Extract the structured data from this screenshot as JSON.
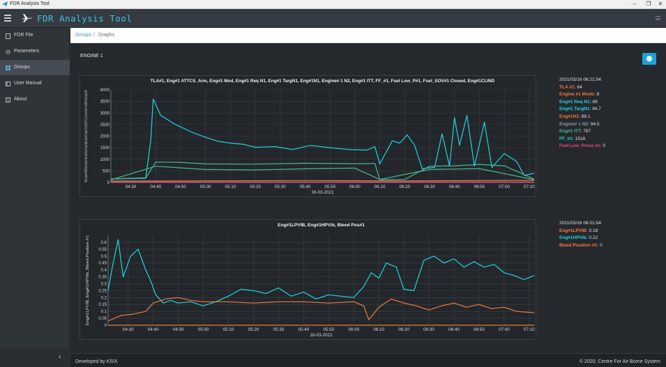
{
  "window": {
    "title": "FDR Analysis Tool"
  },
  "appbar": {
    "title": "FDR Analysis Tool"
  },
  "sidebar": {
    "items": [
      {
        "label": "FDR File",
        "icon": "file-icon"
      },
      {
        "label": "Parameters",
        "icon": "gear-icon"
      },
      {
        "label": "Groups",
        "icon": "grid-icon"
      },
      {
        "label": "User Manual",
        "icon": "book-icon"
      },
      {
        "label": "About",
        "icon": "info-icon"
      }
    ],
    "active": "Groups"
  },
  "breadcrumb": {
    "parent": "Groups",
    "separator": "/",
    "current": "Graphs"
  },
  "page": {
    "section_title": "ENGINE 1"
  },
  "footer": {
    "left": "Developed by KSIX",
    "right": "© 2020. Centre For Air Borne System"
  },
  "colors": {
    "cyan": "#1fd6df",
    "green": "#49b88f",
    "orange": "#f07a3e",
    "pink": "#e54a8a",
    "accent": "#1fa0d8"
  },
  "charts": [
    {
      "legend": {
        "timestamp": "2021/03/16 06:21:54:",
        "entries": [
          {
            "label": "TLA #1:",
            "value": "64",
            "color": "#f07a3e"
          },
          {
            "label": "Engine #1 Mode:",
            "value": "8",
            "color": "#f07a3e"
          },
          {
            "label": "Eng#1 Req N1:",
            "value": "88",
            "color": "#1fd6df"
          },
          {
            "label": "Eng#1 TargN1:",
            "value": "94.7",
            "color": "#1fd6df"
          },
          {
            "label": "Eng#1N1:",
            "value": "88.1",
            "color": "#f07a3e"
          },
          {
            "label": "Engine# 1 N2:",
            "value": "94.5",
            "color": "#8d98a2"
          },
          {
            "label": "Eng#1 ITT:",
            "value": "787",
            "color": "#49b88f"
          },
          {
            "label": "FF_#1:",
            "value": "1516",
            "color": "#1fd6df"
          },
          {
            "label": "Fuel Low_Press #1:",
            "value": "0",
            "color": "#e54a8a"
          }
        ]
      }
    },
    {
      "legend": {
        "timestamp": "2021/03/16 06:21:54:",
        "entries": [
          {
            "label": "Eng#1LPVIB:",
            "value": "0.18",
            "color": "#f07a3e"
          },
          {
            "label": "Eng#1HPVib:",
            "value": "0.22",
            "color": "#1fd6df"
          },
          {
            "label": "Bleed Position #1:",
            "value": "0",
            "color": "#f07a3e"
          }
        ]
      }
    }
  ],
  "chart_data": [
    {
      "type": "line",
      "title": "TLA#1, Eng#1 ATTCS_Arm, Eng#1 Mod, Eng#1 Req N1, Eng#1 TargN1, Eng#1N1, Engine# 1 N2, Eng#1 ITT, FF_#1, Fuel Low_P#1, Fuel_SOV#1 Closed, Eng#1CLIND",
      "xlabel": "16-03-2021",
      "ylabel": "TLA #1, Engine #1 ATTCS Armed, Engine #1 Mode, Eng#1 Req N1, Eng#1 TargN1, Eng#1 N1, Engine# 1 N2, Eng#1 ITT, FF_#1, Fuel Low Press #1, Fuel SOV#1 Closed, Eng#1CLIND",
      "x_ticks": [
        "04:30",
        "04:40",
        "04:50",
        "05:00",
        "05:10",
        "05:20",
        "05:30",
        "05:40",
        "05:50",
        "06:00",
        "06:10",
        "06:20",
        "06:30",
        "06:40",
        "06:50",
        "07:00",
        "07:10"
      ],
      "x_range": [
        "04:22",
        "07:12"
      ],
      "y_ticks": [
        0,
        500,
        1000,
        1500,
        2000,
        2500,
        3000,
        3500,
        4000
      ],
      "ylim": [
        0,
        4000
      ],
      "grid": true,
      "series": [
        {
          "color": "#1fd6df",
          "x": [
            "04:22",
            "04:36",
            "04:38",
            "04:39",
            "04:42",
            "04:48",
            "04:55",
            "05:00",
            "05:05",
            "05:10",
            "05:15",
            "05:20",
            "05:28",
            "05:35",
            "05:42",
            "05:50",
            "05:58",
            "06:05",
            "06:08",
            "06:10",
            "06:15",
            "06:18",
            "06:21",
            "06:24",
            "06:27",
            "06:32",
            "06:35",
            "06:38",
            "06:40",
            "06:42",
            "06:45",
            "06:48",
            "06:52",
            "06:55",
            "07:00",
            "07:05",
            "07:08",
            "07:12"
          ],
          "values": [
            150,
            200,
            1800,
            3600,
            2900,
            2500,
            2150,
            1950,
            1780,
            1700,
            1650,
            1520,
            1550,
            1420,
            1600,
            1500,
            1420,
            1400,
            1550,
            800,
            1800,
            1700,
            2050,
            1600,
            600,
            650,
            2100,
            700,
            2800,
            1600,
            2900,
            700,
            2600,
            650,
            1250,
            900,
            300,
            400
          ]
        },
        {
          "color": "#49b88f",
          "x": [
            "04:22",
            "04:36",
            "04:40",
            "04:50",
            "05:00",
            "05:20",
            "05:40",
            "06:00",
            "06:08",
            "06:10",
            "06:20",
            "06:30",
            "06:40",
            "06:50",
            "07:00",
            "07:12"
          ],
          "values": [
            150,
            180,
            880,
            870,
            800,
            790,
            830,
            810,
            820,
            120,
            130,
            700,
            720,
            780,
            720,
            140
          ]
        },
        {
          "color": "#49b88f",
          "x": [
            "04:22",
            "04:40",
            "05:00",
            "05:20",
            "05:40",
            "06:00",
            "06:10",
            "06:30",
            "06:50",
            "07:12"
          ],
          "values": [
            110,
            700,
            560,
            540,
            590,
            620,
            130,
            560,
            600,
            120
          ]
        },
        {
          "color": "#f07a3e",
          "x": [
            "04:22",
            "05:00",
            "05:40",
            "06:20",
            "07:12"
          ],
          "values": [
            60,
            70,
            80,
            70,
            90
          ]
        },
        {
          "color": "#e54a8a",
          "x": [
            "04:22",
            "05:00",
            "05:40",
            "06:20",
            "07:12"
          ],
          "values": [
            20,
            25,
            20,
            25,
            20
          ]
        }
      ]
    },
    {
      "type": "line",
      "title": "Eng#1LPVIB, Eng#1HPVib, Bleed Pos#1",
      "xlabel": "16-03-2021",
      "ylabel": "Eng#1LPVIB, Eng#1HPVib, Bleed Position #1",
      "x_ticks": [
        "04:30",
        "04:40",
        "04:50",
        "05:00",
        "05:10",
        "05:20",
        "05:30",
        "05:40",
        "05:50",
        "06:00",
        "06:10",
        "06:20",
        "06:30",
        "06:40",
        "06:50",
        "07:00",
        "07:10"
      ],
      "x_range": [
        "04:22",
        "07:12"
      ],
      "y_ticks": [
        0,
        0.05,
        0.1,
        0.15,
        0.2,
        0.25,
        0.3,
        0.35,
        0.4,
        0.45,
        0.5,
        0.55,
        0.6
      ],
      "ylim": [
        0,
        0.65
      ],
      "grid": true,
      "series": [
        {
          "color": "#1fd6df",
          "x": [
            "04:22",
            "04:24",
            "04:26",
            "04:28",
            "04:31",
            "04:34",
            "04:37",
            "04:39",
            "04:41",
            "04:44",
            "04:47",
            "04:50",
            "04:55",
            "05:00",
            "05:05",
            "05:10",
            "05:15",
            "05:20",
            "05:25",
            "05:30",
            "05:35",
            "05:40",
            "05:45",
            "05:50",
            "05:55",
            "06:00",
            "06:04",
            "06:07",
            "06:10",
            "06:13",
            "06:17",
            "06:20",
            "06:24",
            "06:28",
            "06:32",
            "06:36",
            "06:40",
            "06:44",
            "06:48",
            "06:52",
            "06:56",
            "07:00",
            "07:04",
            "07:08",
            "07:12"
          ],
          "values": [
            0.25,
            0.45,
            0.62,
            0.35,
            0.5,
            0.55,
            0.4,
            0.32,
            0.22,
            0.16,
            0.18,
            0.16,
            0.17,
            0.14,
            0.17,
            0.21,
            0.26,
            0.25,
            0.23,
            0.27,
            0.21,
            0.24,
            0.19,
            0.22,
            0.21,
            0.2,
            0.28,
            0.38,
            0.34,
            0.45,
            0.42,
            0.26,
            0.25,
            0.47,
            0.5,
            0.45,
            0.48,
            0.42,
            0.46,
            0.42,
            0.44,
            0.38,
            0.36,
            0.33,
            0.36
          ]
        },
        {
          "color": "#f07a3e",
          "x": [
            "04:22",
            "04:27",
            "04:32",
            "04:37",
            "04:40",
            "04:45",
            "04:50",
            "04:55",
            "05:00",
            "05:10",
            "05:20",
            "05:30",
            "05:40",
            "05:50",
            "06:00",
            "06:04",
            "06:06",
            "06:10",
            "06:15",
            "06:20",
            "06:25",
            "06:30",
            "06:35",
            "06:40",
            "06:45",
            "06:50",
            "06:55",
            "07:00",
            "07:05",
            "07:12"
          ],
          "values": [
            0.03,
            0.07,
            0.08,
            0.1,
            0.16,
            0.19,
            0.2,
            0.18,
            0.17,
            0.17,
            0.16,
            0.17,
            0.17,
            0.16,
            0.17,
            0.14,
            0.04,
            0.13,
            0.19,
            0.16,
            0.14,
            0.11,
            0.14,
            0.16,
            0.13,
            0.15,
            0.12,
            0.13,
            0.1,
            0.09
          ]
        },
        {
          "color": "#f07a3e",
          "x": [
            "04:22",
            "05:00",
            "05:40",
            "06:20",
            "07:12"
          ],
          "values": [
            0.0,
            0.0,
            0.0,
            0.0,
            0.0
          ]
        }
      ]
    }
  ]
}
